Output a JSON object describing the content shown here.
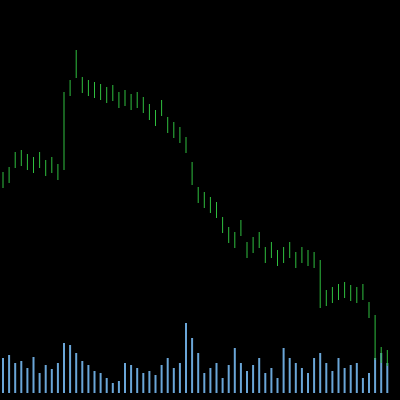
{
  "chart_data": {
    "type": "ohlc",
    "high": [
      228,
      233,
      248,
      250,
      246,
      243,
      248,
      240,
      243,
      236,
      308,
      320,
      350,
      323,
      320,
      318,
      316,
      313,
      315,
      308,
      310,
      306,
      308,
      303,
      296,
      290,
      300,
      283,
      278,
      273,
      263,
      238,
      213,
      208,
      203,
      198,
      183,
      173,
      168,
      180,
      158,
      163,
      168,
      153,
      158,
      150,
      153,
      158,
      148,
      153,
      150,
      148,
      140,
      110,
      113,
      116,
      118,
      115,
      113,
      116,
      98,
      85,
      53,
      50
    ],
    "low": [
      212,
      217,
      232,
      234,
      230,
      227,
      232,
      224,
      227,
      220,
      230,
      304,
      322,
      307,
      304,
      302,
      300,
      297,
      299,
      292,
      294,
      290,
      292,
      287,
      280,
      274,
      284,
      267,
      262,
      257,
      247,
      215,
      197,
      192,
      187,
      182,
      167,
      157,
      152,
      164,
      142,
      147,
      152,
      137,
      142,
      134,
      137,
      142,
      132,
      137,
      134,
      132,
      92,
      94,
      97,
      100,
      102,
      99,
      97,
      100,
      82,
      40,
      37,
      34
    ],
    "volume": [
      35,
      38,
      30,
      32,
      25,
      36,
      20,
      28,
      24,
      30,
      50,
      48,
      40,
      32,
      28,
      22,
      20,
      15,
      10,
      12,
      30,
      28,
      25,
      20,
      22,
      18,
      28,
      35,
      25,
      30,
      70,
      55,
      40,
      20,
      25,
      30,
      15,
      28,
      45,
      30,
      22,
      28,
      35,
      20,
      25,
      15,
      45,
      35,
      30,
      25,
      20,
      35,
      40,
      30,
      22,
      35,
      25,
      28,
      30,
      15,
      20,
      35,
      40,
      30
    ],
    "ylim": [
      0,
      400
    ],
    "volume_ylim": [
      0,
      100
    ],
    "color": "#2fbf3f",
    "volume_color": "#6aa6d8"
  }
}
